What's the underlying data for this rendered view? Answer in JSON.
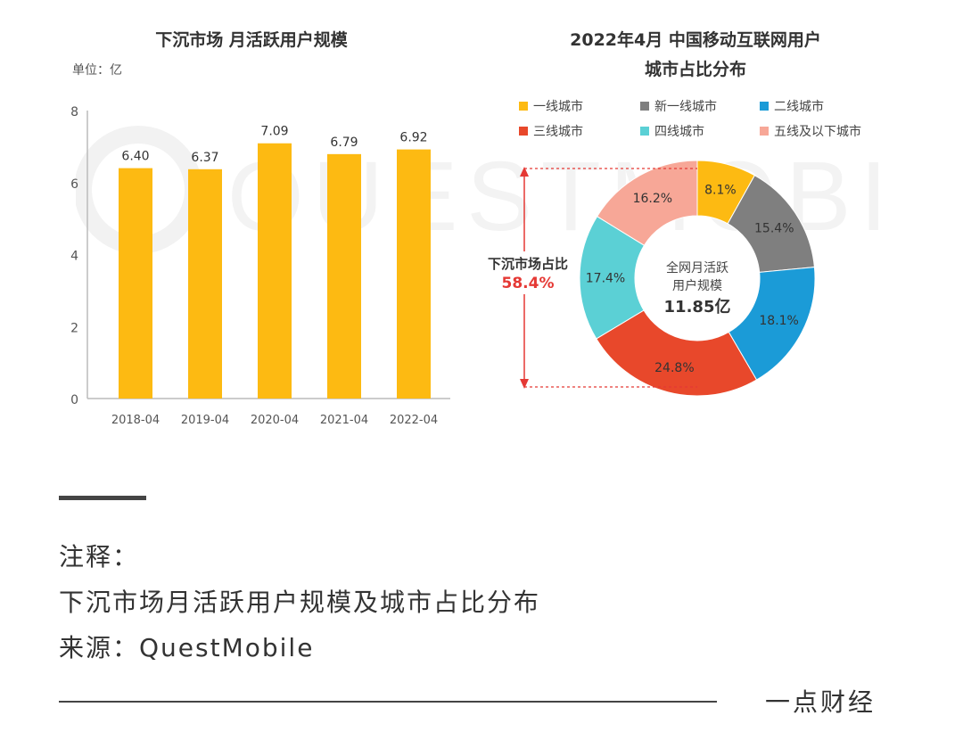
{
  "watermark": "QUESTMOBILE",
  "chart_data": [
    {
      "type": "bar",
      "title": "下沉市场 月活跃用户规模",
      "unit_label": "单位：亿",
      "categories": [
        "2018-04",
        "2019-04",
        "2020-04",
        "2021-04",
        "2022-04"
      ],
      "values": [
        6.4,
        6.37,
        7.09,
        6.79,
        6.92
      ],
      "value_labels": [
        "6.40",
        "6.37",
        "7.09",
        "6.79",
        "6.92"
      ],
      "yticks": [
        "0",
        "2",
        "4",
        "6",
        "8"
      ],
      "ylim": [
        0,
        8
      ],
      "color": "#FDBA12",
      "grid": false
    },
    {
      "type": "pie",
      "title_line1": "2022年4月 中国移动互联网用户",
      "title_line2": "城市占比分布",
      "center_label_line1": "全网月活跃",
      "center_label_line2": "用户规模",
      "center_value": "11.85亿",
      "legend": [
        "一线城市",
        "新一线城市",
        "二线城市",
        "三线城市",
        "四线城市",
        "五线及以下城市"
      ],
      "slices": [
        {
          "name": "一线城市",
          "value": 8.1,
          "label": "8.1%",
          "color": "#FDBA12"
        },
        {
          "name": "新一线城市",
          "value": 15.4,
          "label": "15.4%",
          "color": "#7F7F7F"
        },
        {
          "name": "二线城市",
          "value": 18.1,
          "label": "18.1%",
          "color": "#1B9BD7"
        },
        {
          "name": "三线城市",
          "value": 24.8,
          "label": "24.8%",
          "color": "#E8482B"
        },
        {
          "name": "四线城市",
          "value": 17.4,
          "label": "17.4%",
          "color": "#5BD0D5"
        },
        {
          "name": "五线及以下城市",
          "value": 16.2,
          "label": "16.2%",
          "color": "#F7A797"
        }
      ],
      "bracket_label": "下沉市场占比",
      "bracket_value": "58.4%",
      "bracket_color": "#E53935"
    }
  ],
  "notes": {
    "line1": "注释：",
    "line2": "下沉市场月活跃用户规模及城市占比分布",
    "line3": "来源：QuestMobile"
  },
  "brand": "一点财经"
}
